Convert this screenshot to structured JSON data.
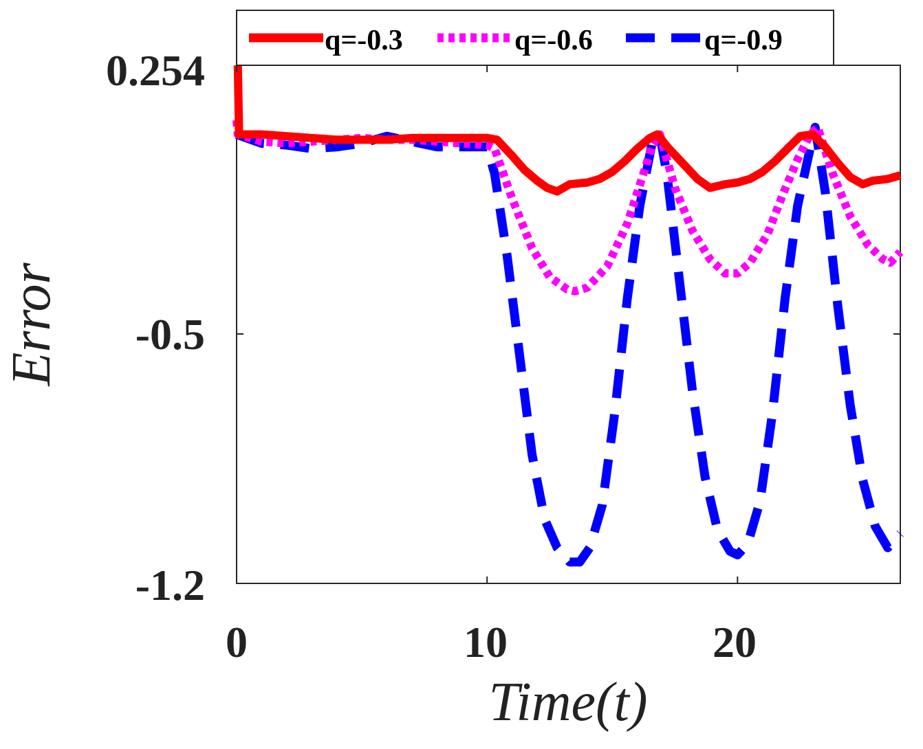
{
  "chart_data": {
    "type": "line",
    "title": "",
    "xlabel": "Time(t)",
    "ylabel": "Error",
    "xlim": [
      0,
      26.5
    ],
    "ylim": [
      -1.2,
      0.254
    ],
    "xticks": [
      0,
      10,
      20
    ],
    "xtick_labels": [
      "0",
      "10",
      "20"
    ],
    "yticks": [
      0.254,
      -0.5,
      -1.2
    ],
    "ytick_labels": [
      "0.254",
      "-0.5",
      "-1.2"
    ],
    "grid": false,
    "legend_position": "top",
    "series": [
      {
        "name": "q=-0.3",
        "color": "#ff0000",
        "style": "solid",
        "x": [
          0,
          0.05,
          0.1,
          1,
          2,
          3,
          4,
          5,
          6,
          7,
          8,
          9,
          10,
          10.4,
          11,
          11.5,
          12,
          12.4,
          12.8,
          13.3,
          14,
          14.5,
          15,
          15.5,
          16,
          16.5,
          16.8,
          17.2,
          17.8,
          18.4,
          18.9,
          19.5,
          20,
          20.5,
          21,
          21.5,
          22,
          22.5,
          23,
          23.5,
          24,
          24.5,
          25,
          25.4,
          26,
          26.5
        ],
        "y": [
          0.254,
          0.254,
          0.06,
          0.06,
          0.055,
          0.05,
          0.045,
          0.045,
          0.045,
          0.05,
          0.05,
          0.05,
          0.05,
          0.045,
          0.0,
          -0.04,
          -0.07,
          -0.09,
          -0.1,
          -0.08,
          -0.075,
          -0.065,
          -0.045,
          -0.015,
          0.02,
          0.05,
          0.06,
          0.025,
          -0.02,
          -0.065,
          -0.09,
          -0.08,
          -0.075,
          -0.065,
          -0.045,
          -0.015,
          0.02,
          0.055,
          0.06,
          0.025,
          -0.02,
          -0.06,
          -0.08,
          -0.07,
          -0.065,
          -0.055
        ]
      },
      {
        "name": "q=-0.6",
        "color": "#ff00ff",
        "style": "dotted",
        "x": [
          0,
          0.05,
          1,
          2,
          3,
          4,
          5,
          6,
          7,
          8,
          9,
          10,
          10.3,
          11,
          11.8,
          12.5,
          13.2,
          13.5,
          14,
          14.8,
          15.6,
          16.2,
          16.6,
          16.9,
          17.5,
          18.2,
          18.9,
          19.5,
          20,
          20.5,
          21.2,
          21.8,
          22.4,
          22.9,
          23.2,
          23.8,
          24.5,
          25.2,
          25.8,
          26.1,
          26.5
        ],
        "y": [
          0.1,
          0.06,
          0.04,
          0.035,
          0.04,
          0.045,
          0.05,
          0.045,
          0.045,
          0.04,
          0.035,
          0.03,
          0.02,
          -0.12,
          -0.26,
          -0.34,
          -0.375,
          -0.38,
          -0.37,
          -0.31,
          -0.19,
          -0.06,
          0.03,
          0.06,
          -0.09,
          -0.21,
          -0.29,
          -0.33,
          -0.33,
          -0.3,
          -0.22,
          -0.11,
          -0.01,
          0.06,
          0.08,
          -0.05,
          -0.17,
          -0.25,
          -0.29,
          -0.3,
          -0.27
        ]
      },
      {
        "name": "q=-0.9",
        "color": "#0000ff",
        "style": "dashed",
        "x": [
          0,
          1,
          2,
          3,
          4,
          5,
          6,
          7,
          8,
          9,
          10,
          10.3,
          10.8,
          11.3,
          11.8,
          12.3,
          12.8,
          13.3,
          13.7,
          14.1,
          14.6,
          15.1,
          15.6,
          16.1,
          16.6,
          16.9,
          17.2,
          17.7,
          18.2,
          18.7,
          19.2,
          19.7,
          20.0,
          20.4,
          20.9,
          21.4,
          21.9,
          22.4,
          22.9,
          23.1,
          23.5,
          24,
          24.5,
          25,
          25.5,
          26,
          26.5
        ],
        "y": [
          0.06,
          0.035,
          0.03,
          0.02,
          0.025,
          0.035,
          0.055,
          0.04,
          0.025,
          0.025,
          0.025,
          -0.05,
          -0.28,
          -0.56,
          -0.84,
          -1.02,
          -1.1,
          -1.14,
          -1.14,
          -1.1,
          -0.98,
          -0.72,
          -0.4,
          -0.14,
          0.04,
          0.06,
          -0.06,
          -0.36,
          -0.66,
          -0.9,
          -1.05,
          -1.11,
          -1.12,
          -1.09,
          -0.97,
          -0.72,
          -0.4,
          -0.14,
          0.02,
          0.08,
          -0.1,
          -0.42,
          -0.7,
          -0.91,
          -1.04,
          -1.1,
          -1.06
        ]
      }
    ]
  }
}
